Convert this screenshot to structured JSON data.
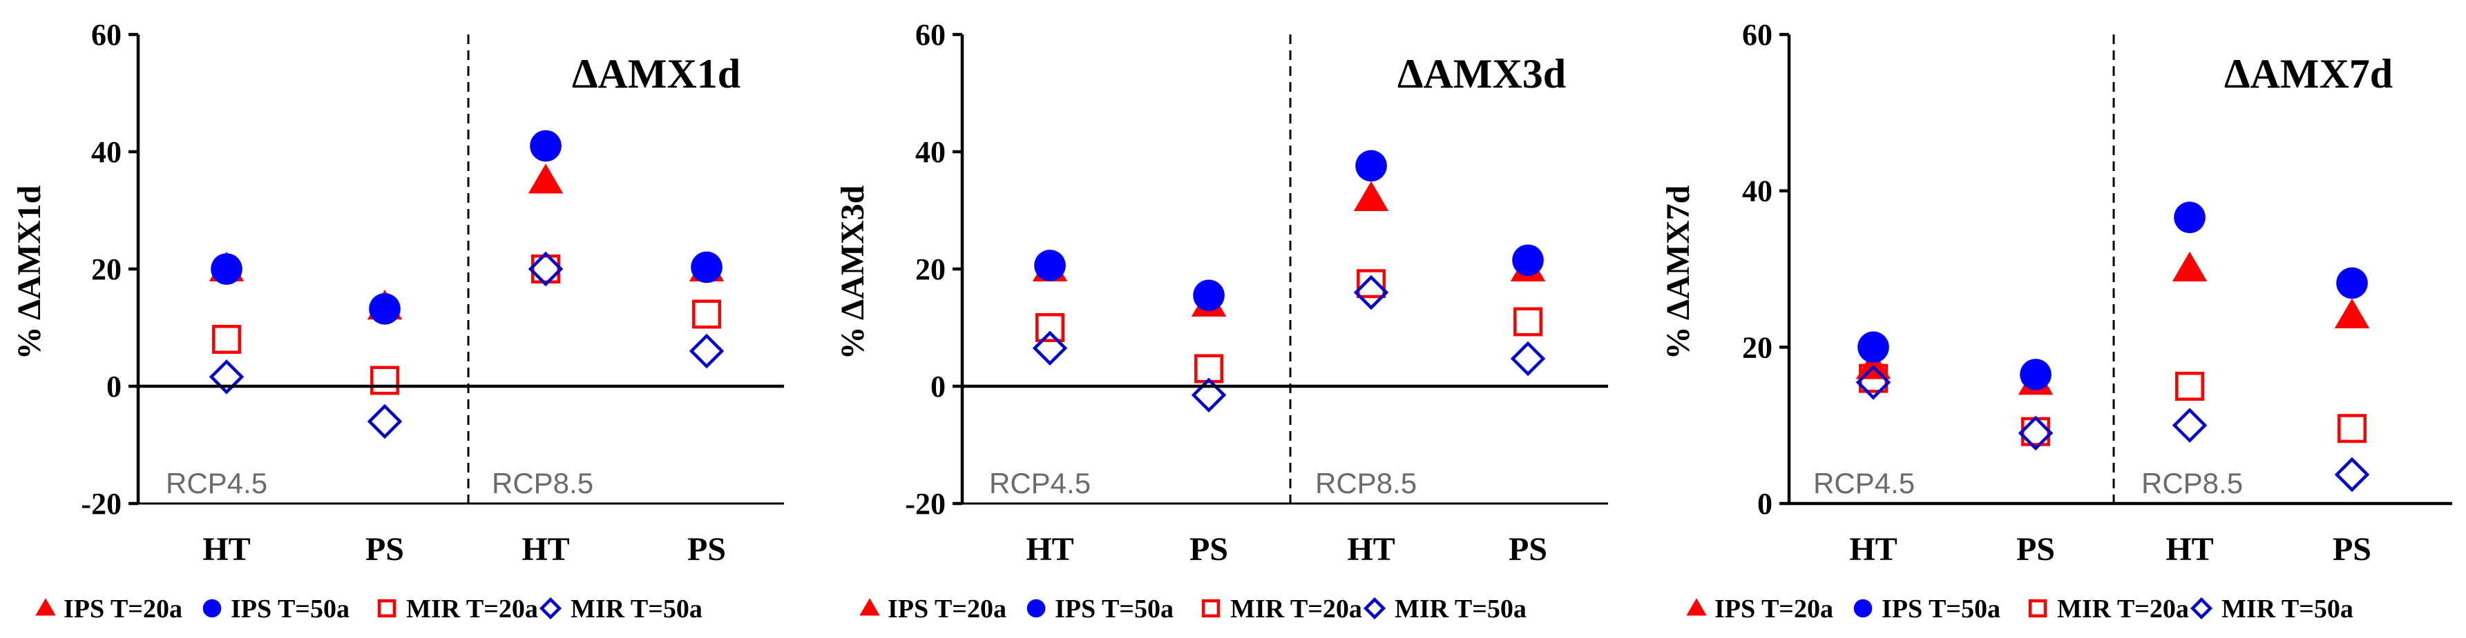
{
  "chart_data": [
    {
      "type": "scatter",
      "title": "ΔAMX1d",
      "ylabel": "% ΔAMX1d",
      "ylim": [
        -20,
        60
      ],
      "yticks": [
        "-20",
        "0",
        "20",
        "40",
        "60"
      ],
      "categories": [
        "HT",
        "PS",
        "HT",
        "PS"
      ],
      "scenario_labels": [
        "RCP4.5",
        "RCP8.5"
      ],
      "series": [
        {
          "name": "IPS T=20a",
          "marker": "triangle",
          "color": "#ff0000",
          "values": [
            20,
            13.5,
            35,
            20
          ]
        },
        {
          "name": "IPS T=50a",
          "marker": "circle",
          "color": "#0000ff",
          "values": [
            20,
            13.2,
            41,
            20.3
          ]
        },
        {
          "name": "MIR T=20a",
          "marker": "open-square",
          "color": "#ff0000",
          "values": [
            8,
            1,
            20,
            12.3
          ]
        },
        {
          "name": "MIR T=50a",
          "marker": "open-diamond",
          "color": "#0000cc",
          "values": [
            1.6,
            -6,
            20,
            6
          ]
        }
      ]
    },
    {
      "type": "scatter",
      "title": "ΔAMX3d",
      "ylabel": "% ΔAMX3d",
      "ylim": [
        -20,
        60
      ],
      "yticks": [
        "-20",
        "0",
        "20",
        "40",
        "60"
      ],
      "categories": [
        "HT",
        "PS",
        "HT",
        "PS"
      ],
      "scenario_labels": [
        "RCP4.5",
        "RCP8.5"
      ],
      "series": [
        {
          "name": "IPS T=20a",
          "marker": "triangle",
          "color": "#ff0000",
          "values": [
            20,
            14,
            32,
            20
          ]
        },
        {
          "name": "IPS T=50a",
          "marker": "circle",
          "color": "#0000ff",
          "values": [
            20.6,
            15.5,
            37.6,
            21.5
          ]
        },
        {
          "name": "MIR T=20a",
          "marker": "open-square",
          "color": "#ff0000",
          "values": [
            10,
            3,
            17.5,
            11
          ]
        },
        {
          "name": "MIR T=50a",
          "marker": "open-diamond",
          "color": "#0000cc",
          "values": [
            6.5,
            -1.5,
            16,
            4.7
          ]
        }
      ]
    },
    {
      "type": "scatter",
      "title": "ΔAMX7d",
      "ylabel": "% ΔAMX7d",
      "ylim": [
        0,
        60
      ],
      "yticks": [
        "0",
        "20",
        "40",
        "60"
      ],
      "categories": [
        "HT",
        "PS",
        "HT",
        "PS"
      ],
      "scenario_labels": [
        "RCP4.5",
        "RCP8.5"
      ],
      "series": [
        {
          "name": "IPS T=20a",
          "marker": "triangle",
          "color": "#ff0000",
          "values": [
            17.5,
            15.5,
            30,
            24
          ]
        },
        {
          "name": "IPS T=50a",
          "marker": "circle",
          "color": "#0000ff",
          "values": [
            20,
            16.5,
            36.6,
            28.2
          ]
        },
        {
          "name": "MIR T=20a",
          "marker": "open-square",
          "color": "#ff0000",
          "values": [
            16,
            9.2,
            15,
            9.6
          ]
        },
        {
          "name": "MIR T=50a",
          "marker": "open-diamond",
          "color": "#0000cc",
          "values": [
            15.5,
            9,
            10,
            3.7
          ]
        }
      ]
    }
  ]
}
